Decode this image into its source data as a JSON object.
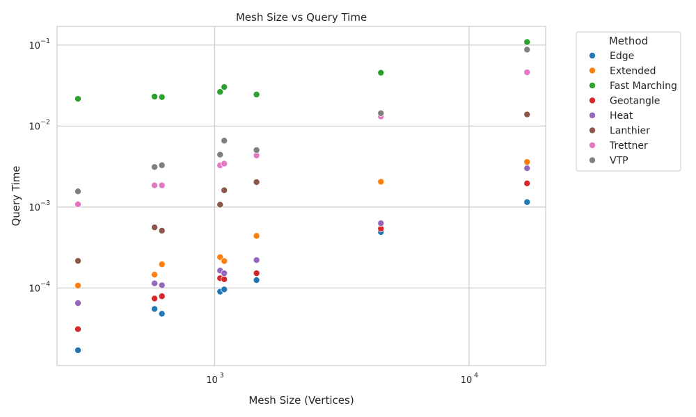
{
  "chart_data": {
    "type": "scatter",
    "title": "Mesh Size vs Query Time",
    "xlabel": "Mesh Size (Vertices)",
    "ylabel": "Query Time",
    "xscale": "log",
    "yscale": "log",
    "xlim": [
      240,
      20000
    ],
    "ylim": [
      1.1e-05,
      0.17
    ],
    "xticks": [
      {
        "value": 1000,
        "base": "10",
        "exp": "3"
      },
      {
        "value": 10000,
        "base": "10",
        "exp": "4"
      }
    ],
    "yticks": [
      {
        "value": 0.0001,
        "base": "10",
        "exp": "−4"
      },
      {
        "value": 0.001,
        "base": "10",
        "exp": "−3"
      },
      {
        "value": 0.01,
        "base": "10",
        "exp": "−2"
      },
      {
        "value": 0.1,
        "base": "10",
        "exp": "−1"
      }
    ],
    "grid": true,
    "legend": {
      "title": "Method",
      "placement": "outside-top-right"
    },
    "series": [
      {
        "name": "Edge",
        "color": "#1f77b4",
        "points": [
          [
            290,
            1.7e-05
          ],
          [
            580,
            5.5e-05
          ],
          [
            620,
            4.8e-05
          ],
          [
            1050,
            9e-05
          ],
          [
            1090,
            9.6e-05
          ],
          [
            1460,
            0.000125
          ],
          [
            4500,
            0.00049
          ],
          [
            16900,
            0.00115
          ]
        ]
      },
      {
        "name": "Extended",
        "color": "#ff7f0e",
        "points": [
          [
            290,
            0.000107
          ],
          [
            580,
            0.000146
          ],
          [
            620,
            0.000196
          ],
          [
            1050,
            0.00024
          ],
          [
            1090,
            0.000215
          ],
          [
            1460,
            0.00044
          ],
          [
            4500,
            0.00205
          ],
          [
            16900,
            0.0036
          ]
        ]
      },
      {
        "name": "Fast Marching",
        "color": "#2ca02c",
        "points": [
          [
            290,
            0.0217
          ],
          [
            580,
            0.0231
          ],
          [
            620,
            0.0228
          ],
          [
            1050,
            0.0264
          ],
          [
            1090,
            0.0303
          ],
          [
            1460,
            0.0245
          ],
          [
            4500,
            0.0455
          ],
          [
            16900,
            0.109
          ]
        ]
      },
      {
        "name": "Geotangle",
        "color": "#d62728",
        "points": [
          [
            290,
            3.1e-05
          ],
          [
            580,
            7.4e-05
          ],
          [
            620,
            7.9e-05
          ],
          [
            1050,
            0.000132
          ],
          [
            1090,
            0.000128
          ],
          [
            1460,
            0.000152
          ],
          [
            4500,
            0.00054
          ],
          [
            16900,
            0.00196
          ]
        ]
      },
      {
        "name": "Heat",
        "color": "#9467bd",
        "points": [
          [
            290,
            6.5e-05
          ],
          [
            580,
            0.000114
          ],
          [
            620,
            0.000108
          ],
          [
            1050,
            0.000164
          ],
          [
            1090,
            0.000152
          ],
          [
            1460,
            0.000221
          ],
          [
            4500,
            0.00063
          ],
          [
            16900,
            0.00301
          ]
        ]
      },
      {
        "name": "Lanthier",
        "color": "#8c564b",
        "points": [
          [
            290,
            0.000216
          ],
          [
            580,
            0.00056
          ],
          [
            620,
            0.00051
          ],
          [
            1050,
            0.00107
          ],
          [
            1090,
            0.00161
          ],
          [
            1460,
            0.00203
          ],
          [
            4500,
            0.0133
          ],
          [
            16900,
            0.0139
          ]
        ]
      },
      {
        "name": "Trettner",
        "color": "#e377c2",
        "points": [
          [
            290,
            0.00108
          ],
          [
            580,
            0.00185
          ],
          [
            620,
            0.00185
          ],
          [
            1050,
            0.00327
          ],
          [
            1090,
            0.00343
          ],
          [
            1460,
            0.00433
          ],
          [
            4500,
            0.0131
          ],
          [
            16900,
            0.0461
          ]
        ]
      },
      {
        "name": "VTP",
        "color": "#7f7f7f",
        "points": [
          [
            290,
            0.00156
          ],
          [
            580,
            0.00312
          ],
          [
            620,
            0.00328
          ],
          [
            1050,
            0.00443
          ],
          [
            1090,
            0.0066
          ],
          [
            1460,
            0.00504
          ],
          [
            4500,
            0.0144
          ],
          [
            16900,
            0.0879
          ]
        ]
      }
    ]
  }
}
